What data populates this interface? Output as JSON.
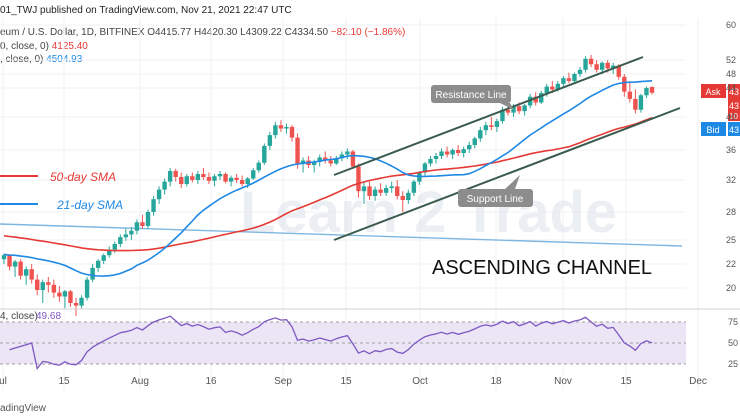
{
  "header": {
    "publisher": "01_TWJ published on TradingView.com, Nov 21, 2021 22:47 UTC"
  },
  "symbol_line": {
    "name": "eum / U.S. Dollar, 1D, BITFINEX",
    "open": "O4415.77",
    "high": "H4420.30",
    "low": "L4309.22",
    "close": "C4334.50",
    "change": "−82.10 (−1.86%)"
  },
  "indicators": [
    {
      "label": "0, close, 0)",
      "value": "4125.40",
      "color": "#e53935"
    },
    {
      "label": ", close, 0)",
      "value": "4504.93",
      "color": "#1e88e5"
    }
  ],
  "rsi_legend": {
    "label": "4, close)",
    "value": "49.68"
  },
  "footer": {
    "brand": "adingView"
  },
  "ask_bid": {
    "ask_label": "Ask",
    "bid_label": "Bid",
    "ask_value": "43",
    "mid_value": "43",
    "small_value": "10",
    "bid_value": "43"
  },
  "chart_data": {
    "type": "candlestick",
    "x_ticks": [
      "ul",
      "15",
      "Aug",
      "16",
      "Sep",
      "15",
      "Oct",
      "18",
      "Nov",
      "15",
      "Dec"
    ],
    "y_ticks": [
      "60",
      "52",
      "48",
      "44",
      "40",
      "36",
      "32",
      "28",
      "25",
      "22",
      "20"
    ],
    "rsi_ticks": [
      "75",
      "50",
      "25"
    ],
    "series": [
      {
        "name": "50-day SMA",
        "color": "#e53935"
      },
      {
        "name": "21-day SMA",
        "color": "#1e88e5"
      }
    ],
    "sma200_color": "#7fb6e0",
    "annotations": {
      "resistance_line": "Resistance Line",
      "support_line": "Support Line",
      "channel_title": "ASCENDING CHANNEL",
      "watermark": "Learn 2 Trade"
    },
    "candles": [
      [
        2260,
        2330,
        2200,
        2310
      ],
      [
        2310,
        2320,
        2150,
        2180
      ],
      [
        2180,
        2250,
        2100,
        2230
      ],
      [
        2230,
        2260,
        2080,
        2110
      ],
      [
        2110,
        2180,
        2040,
        2160
      ],
      [
        2160,
        2200,
        2050,
        2080
      ],
      [
        2080,
        2120,
        1960,
        2000
      ],
      [
        2000,
        2080,
        1900,
        2060
      ],
      [
        2060,
        2100,
        1980,
        2040
      ],
      [
        2040,
        2080,
        1940,
        1980
      ],
      [
        1980,
        2030,
        1910,
        1950
      ],
      [
        1950,
        2000,
        1860,
        1990
      ],
      [
        1990,
        2000,
        1870,
        1900
      ],
      [
        1900,
        1940,
        1800,
        1880
      ],
      [
        1880,
        1960,
        1860,
        1940
      ],
      [
        1940,
        2100,
        1920,
        2080
      ],
      [
        2080,
        2200,
        2060,
        2170
      ],
      [
        2170,
        2260,
        2140,
        2240
      ],
      [
        2240,
        2330,
        2200,
        2310
      ],
      [
        2310,
        2420,
        2280,
        2380
      ],
      [
        2380,
        2480,
        2340,
        2450
      ],
      [
        2450,
        2560,
        2410,
        2530
      ],
      [
        2530,
        2620,
        2490,
        2560
      ],
      [
        2560,
        2640,
        2500,
        2600
      ],
      [
        2600,
        2720,
        2560,
        2690
      ],
      [
        2690,
        2770,
        2620,
        2650
      ],
      [
        2650,
        2830,
        2620,
        2800
      ],
      [
        2800,
        3000,
        2760,
        2960
      ],
      [
        2960,
        3120,
        2900,
        3080
      ],
      [
        3080,
        3220,
        3020,
        3180
      ],
      [
        3180,
        3360,
        3120,
        3320
      ],
      [
        3320,
        3350,
        3180,
        3240
      ],
      [
        3240,
        3300,
        3100,
        3150
      ],
      [
        3150,
        3280,
        3120,
        3250
      ],
      [
        3250,
        3300,
        3170,
        3200
      ],
      [
        3200,
        3320,
        3150,
        3280
      ],
      [
        3280,
        3360,
        3200,
        3240
      ],
      [
        3240,
        3300,
        3150,
        3190
      ],
      [
        3190,
        3280,
        3120,
        3250
      ],
      [
        3250,
        3320,
        3200,
        3280
      ],
      [
        3280,
        3300,
        3160,
        3180
      ],
      [
        3180,
        3260,
        3120,
        3230
      ],
      [
        3230,
        3280,
        3160,
        3200
      ],
      [
        3200,
        3260,
        3120,
        3150
      ],
      [
        3150,
        3240,
        3100,
        3220
      ],
      [
        3220,
        3360,
        3200,
        3330
      ],
      [
        3330,
        3460,
        3300,
        3430
      ],
      [
        3430,
        3680,
        3400,
        3650
      ],
      [
        3650,
        3820,
        3600,
        3780
      ],
      [
        3780,
        3940,
        3740,
        3900
      ],
      [
        3900,
        3960,
        3820,
        3860
      ],
      [
        3860,
        3920,
        3800,
        3880
      ],
      [
        3880,
        3900,
        3700,
        3750
      ],
      [
        3750,
        3800,
        3350,
        3420
      ],
      [
        3420,
        3500,
        3300,
        3460
      ],
      [
        3460,
        3520,
        3360,
        3400
      ],
      [
        3400,
        3470,
        3300,
        3440
      ],
      [
        3440,
        3540,
        3380,
        3500
      ],
      [
        3500,
        3580,
        3420,
        3460
      ],
      [
        3460,
        3520,
        3380,
        3420
      ],
      [
        3420,
        3520,
        3400,
        3490
      ],
      [
        3490,
        3580,
        3450,
        3540
      ],
      [
        3540,
        3620,
        3480,
        3580
      ],
      [
        3580,
        3600,
        3350,
        3380
      ],
      [
        3380,
        3420,
        2980,
        3060
      ],
      [
        3060,
        3180,
        2900,
        3120
      ],
      [
        3120,
        3180,
        2950,
        3000
      ],
      [
        3000,
        3120,
        2940,
        3080
      ],
      [
        3080,
        3160,
        3000,
        3040
      ],
      [
        3040,
        3140,
        3000,
        3100
      ],
      [
        3100,
        3180,
        3040,
        3120
      ],
      [
        3120,
        3200,
        2960,
        3000
      ],
      [
        3000,
        3060,
        2800,
        2950
      ],
      [
        2950,
        3080,
        2900,
        3040
      ],
      [
        3040,
        3200,
        3000,
        3180
      ],
      [
        3180,
        3320,
        3140,
        3300
      ],
      [
        3300,
        3440,
        3260,
        3420
      ],
      [
        3420,
        3520,
        3380,
        3480
      ],
      [
        3480,
        3560,
        3420,
        3520
      ],
      [
        3520,
        3620,
        3480,
        3580
      ],
      [
        3580,
        3640,
        3500,
        3540
      ],
      [
        3540,
        3620,
        3480,
        3600
      ],
      [
        3600,
        3660,
        3520,
        3560
      ],
      [
        3560,
        3640,
        3500,
        3610
      ],
      [
        3610,
        3700,
        3560,
        3660
      ],
      [
        3660,
        3760,
        3620,
        3740
      ],
      [
        3740,
        3880,
        3700,
        3840
      ],
      [
        3840,
        3940,
        3780,
        3900
      ],
      [
        3900,
        4000,
        3840,
        3880
      ],
      [
        3880,
        3980,
        3820,
        3950
      ],
      [
        3950,
        4140,
        3920,
        4100
      ],
      [
        4100,
        4220,
        4020,
        4060
      ],
      [
        4060,
        4180,
        4000,
        4150
      ],
      [
        4150,
        4200,
        4040,
        4080
      ],
      [
        4080,
        4180,
        4020,
        4160
      ],
      [
        4160,
        4320,
        4120,
        4280
      ],
      [
        4280,
        4340,
        4160,
        4200
      ],
      [
        4200,
        4360,
        4180,
        4330
      ],
      [
        4330,
        4460,
        4280,
        4420
      ],
      [
        4420,
        4500,
        4330,
        4380
      ],
      [
        4380,
        4500,
        4350,
        4460
      ],
      [
        4460,
        4570,
        4420,
        4540
      ],
      [
        4540,
        4620,
        4470,
        4500
      ],
      [
        4500,
        4620,
        4460,
        4600
      ],
      [
        4600,
        4700,
        4560,
        4660
      ],
      [
        4660,
        4860,
        4620,
        4820
      ],
      [
        4820,
        4880,
        4700,
        4740
      ],
      [
        4740,
        4800,
        4620,
        4660
      ],
      [
        4660,
        4780,
        4600,
        4760
      ],
      [
        4760,
        4800,
        4620,
        4680
      ],
      [
        4680,
        4760,
        4600,
        4720
      ],
      [
        4720,
        4740,
        4520,
        4560
      ],
      [
        4560,
        4600,
        4280,
        4350
      ],
      [
        4350,
        4480,
        4200,
        4250
      ],
      [
        4250,
        4380,
        4050,
        4100
      ],
      [
        4100,
        4320,
        4060,
        4300
      ],
      [
        4300,
        4420,
        4260,
        4400
      ],
      [
        4415.77,
        4420.3,
        4309.22,
        4334.5
      ]
    ]
  }
}
